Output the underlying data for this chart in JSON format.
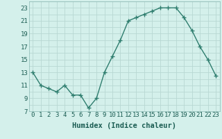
{
  "x": [
    0,
    1,
    2,
    3,
    4,
    5,
    6,
    7,
    8,
    9,
    10,
    11,
    12,
    13,
    14,
    15,
    16,
    17,
    18,
    19,
    20,
    21,
    22,
    23
  ],
  "y": [
    13,
    11,
    10.5,
    10,
    11,
    9.5,
    9.5,
    7.5,
    9,
    13,
    15.5,
    18,
    21,
    21.5,
    22,
    22.5,
    23,
    23,
    23,
    21.5,
    19.5,
    17,
    15,
    12.5
  ],
  "line_color": "#2e7d6e",
  "marker": "+",
  "marker_size": 4,
  "background_color": "#d4f0eb",
  "grid_color": "#b8d8d3",
  "xlabel": "Humidex (Indice chaleur)",
  "xlim": [
    -0.5,
    23.5
  ],
  "ylim": [
    7,
    24
  ],
  "yticks": [
    7,
    9,
    11,
    13,
    15,
    17,
    19,
    21,
    23
  ],
  "xticks": [
    0,
    1,
    2,
    3,
    4,
    5,
    6,
    7,
    8,
    9,
    10,
    11,
    12,
    13,
    14,
    15,
    16,
    17,
    18,
    19,
    20,
    21,
    22,
    23
  ],
  "xlabel_fontsize": 7.5,
  "tick_fontsize": 6.5,
  "line_width": 1.0,
  "text_color": "#1a5c52"
}
